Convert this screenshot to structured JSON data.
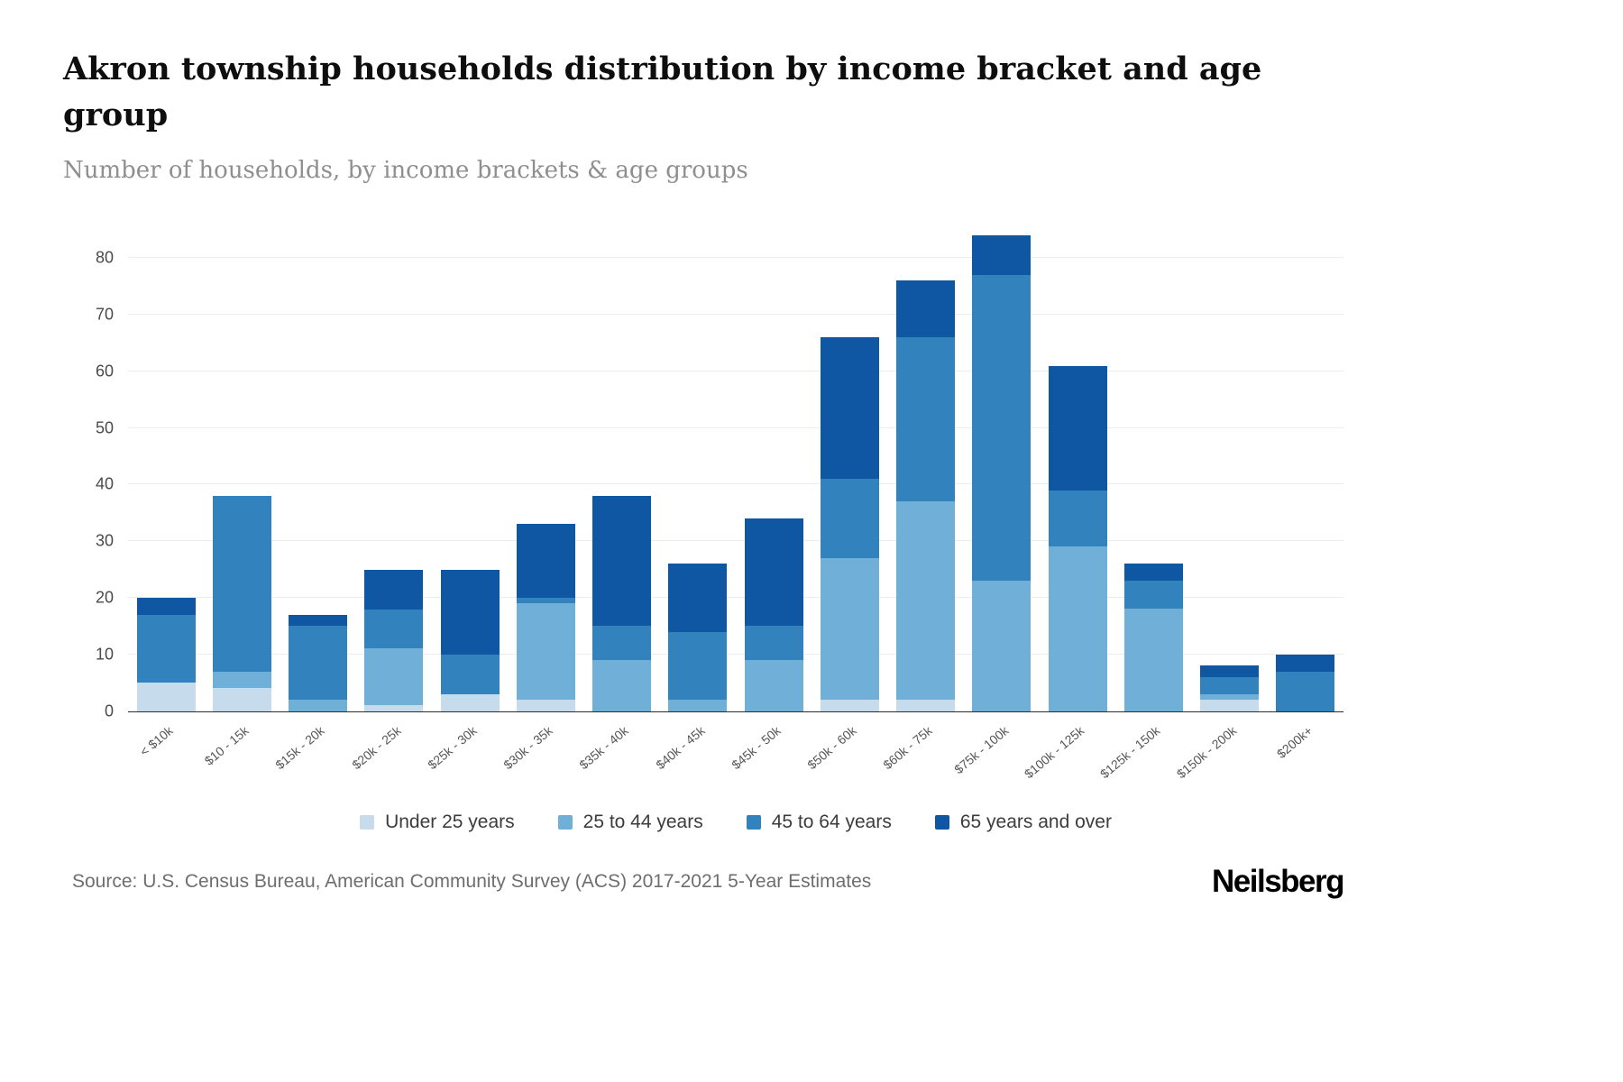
{
  "header": {
    "title": "Akron township households distribution by income bracket and age group",
    "subtitle": "Number of households, by income brackets & age groups"
  },
  "footer": {
    "source": "Source: U.S. Census Bureau, American Community Survey (ACS) 2017-2021 5-Year Estimates",
    "brand": "Neilsberg"
  },
  "chart_data": {
    "type": "bar",
    "stacked": true,
    "title": "Akron township households distribution by income bracket and age group",
    "xlabel": "",
    "ylabel": "Number of households",
    "ylim": [
      0,
      86
    ],
    "yticks": [
      0,
      10,
      20,
      30,
      40,
      50,
      60,
      70,
      80
    ],
    "grid": true,
    "legend_position": "bottom",
    "categories": [
      "< $10k",
      "$10 - 15k",
      "$15k - 20k",
      "$20k - 25k",
      "$25k - 30k",
      "$30k - 35k",
      "$35k - 40k",
      "$40k - 45k",
      "$45k - 50k",
      "$50k - 60k",
      "$60k - 75k",
      "$75k - 100k",
      "$100k - 125k",
      "$125k - 150k",
      "$150k - 200k",
      "$200k+"
    ],
    "series": [
      {
        "name": "Under 25 years",
        "color": "#c6dbec",
        "values": [
          5,
          4,
          0,
          1,
          3,
          2,
          0,
          0,
          0,
          2,
          2,
          0,
          0,
          0,
          2,
          0
        ]
      },
      {
        "name": "25 to 44 years",
        "color": "#6fafd8",
        "values": [
          0,
          3,
          2,
          10,
          0,
          17,
          9,
          2,
          9,
          25,
          35,
          23,
          29,
          18,
          1,
          0
        ]
      },
      {
        "name": "45 to 64 years",
        "color": "#3182bd",
        "values": [
          12,
          31,
          13,
          7,
          7,
          1,
          6,
          12,
          6,
          14,
          29,
          54,
          10,
          5,
          3,
          7
        ]
      },
      {
        "name": "65 years and over",
        "color": "#1057a3",
        "values": [
          3,
          0,
          2,
          7,
          15,
          13,
          23,
          12,
          19,
          25,
          10,
          7,
          22,
          3,
          2,
          3
        ]
      }
    ],
    "totals": [
      20,
      38,
      17,
      25,
      25,
      33,
      38,
      26,
      34,
      66,
      76,
      84,
      61,
      26,
      8,
      10
    ]
  }
}
